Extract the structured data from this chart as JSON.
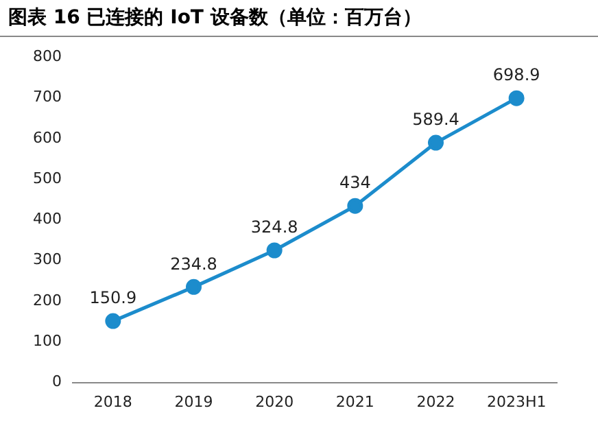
{
  "chart_data": {
    "type": "line",
    "title": "图表 16 已连接的 IoT 设备数（单位：百万台）",
    "categories": [
      "2018",
      "2019",
      "2020",
      "2021",
      "2022",
      "2023H1"
    ],
    "series": [
      {
        "color": "#1c8ccc",
        "values": [
          150.9,
          234.8,
          324.8,
          434,
          589.4,
          698.9
        ]
      }
    ],
    "ylim": [
      0,
      800
    ],
    "yticks": [
      0,
      100,
      200,
      300,
      400,
      500,
      600,
      700,
      800
    ],
    "marker": "circle",
    "line_style": "solid",
    "data_labels": true,
    "grid": false,
    "legend": false
  }
}
